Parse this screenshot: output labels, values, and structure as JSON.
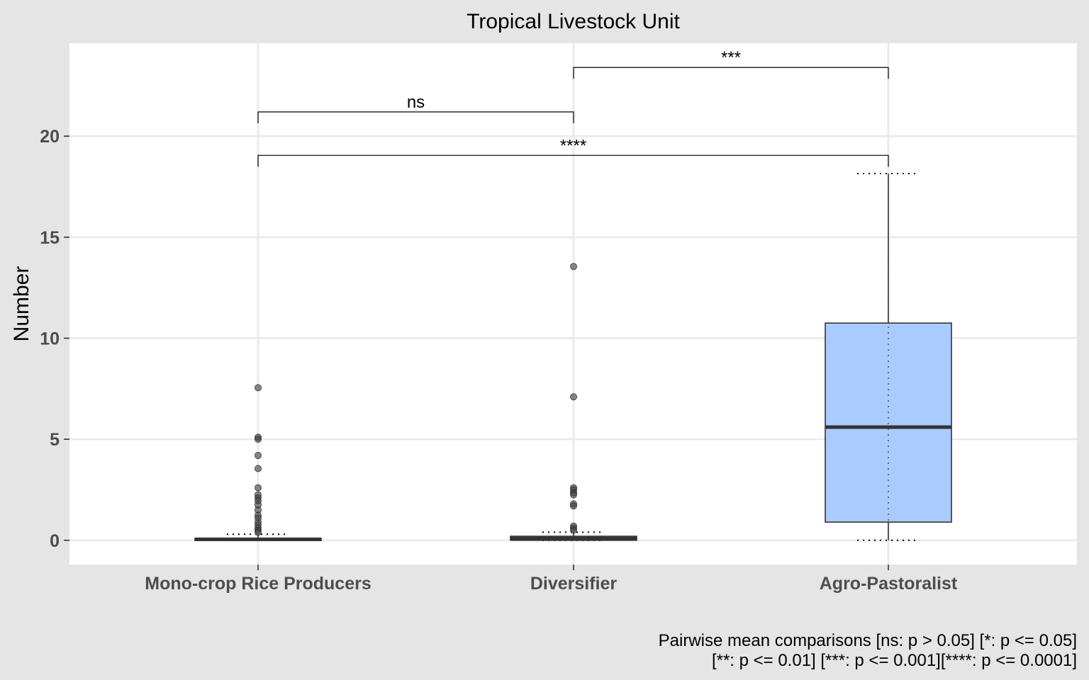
{
  "chart_data": {
    "type": "box",
    "title": "Tropical Livestock Unit",
    "xlabel": "",
    "ylabel": "Number",
    "ylim": [
      -1.2,
      24.6
    ],
    "yticks": [
      0,
      5,
      10,
      15,
      20
    ],
    "grid": true,
    "colors": {
      "panel_background": "#ffffff",
      "outer_background": "#e5e5e5",
      "grid": "#ebebeb",
      "box_fill_mono": "#f8766d",
      "box_fill_diversifier": "#00ba38",
      "box_fill_agro": "#aacbff"
    },
    "categories": [
      "Mono-crop Rice Producers",
      "Diversifier",
      "Agro-Pastoralist"
    ],
    "boxes": [
      {
        "category": "Mono-crop Rice Producers",
        "q1": 0.0,
        "median": 0.05,
        "q3": 0.1,
        "whisker_low": 0.0,
        "whisker_high": 0.3,
        "outliers": [
          7.55,
          5.1,
          5.0,
          4.2,
          3.55,
          2.6,
          2.25,
          2.1,
          1.95,
          1.75,
          1.5,
          1.25,
          1.1,
          0.9,
          0.75,
          0.6,
          0.5,
          0.4
        ]
      },
      {
        "category": "Diversifier",
        "q1": 0.0,
        "median": 0.08,
        "q3": 0.2,
        "whisker_low": 0.0,
        "whisker_high": 0.4,
        "outliers": [
          13.55,
          7.1,
          2.6,
          2.5,
          2.35,
          2.25,
          1.8,
          1.7,
          0.7,
          0.6,
          0.5
        ]
      },
      {
        "category": "Agro-Pastoralist",
        "q1": 0.9,
        "median": 5.6,
        "q3": 10.75,
        "whisker_low": 0.0,
        "whisker_high": 18.15,
        "outliers": []
      }
    ],
    "comparisons": [
      {
        "from": "Mono-crop Rice Producers",
        "to": "Diversifier",
        "label": "ns",
        "y": 21.2
      },
      {
        "from": "Diversifier",
        "to": "Agro-Pastoralist",
        "label": "***",
        "y": 23.4
      },
      {
        "from": "Mono-crop Rice Producers",
        "to": "Agro-Pastoralist",
        "label": "****",
        "y": 19.05
      }
    ],
    "caption": [
      "Pairwise mean comparisons [ns: p > 0.05] [*: p <= 0.05]",
      "[**: p <= 0.01] [***: p <= 0.001][****: p <= 0.0001]"
    ]
  }
}
